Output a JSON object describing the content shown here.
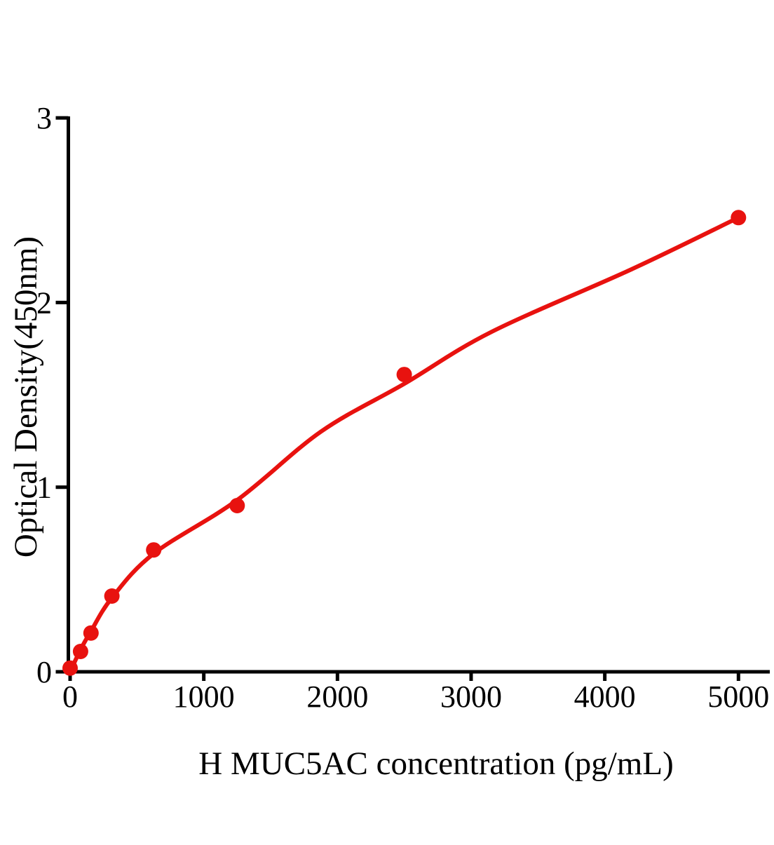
{
  "chart_data": {
    "type": "scatter",
    "title": "",
    "xlabel": "H MUC5AC concentration (pg/mL)",
    "ylabel": "Optical Density(450nm)",
    "x_ticks": [
      0,
      1000,
      2000,
      3000,
      4000,
      5000
    ],
    "x_tick_labels": [
      "0",
      "1000",
      "2000",
      "3000",
      "4000",
      "5000"
    ],
    "y_ticks": [
      0,
      1,
      2,
      3
    ],
    "y_tick_labels": [
      "0",
      "1",
      "2",
      "3"
    ],
    "xlim": [
      0,
      5230
    ],
    "ylim": [
      0,
      3
    ],
    "grid": false,
    "legend": "none",
    "series": [
      {
        "name": "standard-curve-points",
        "x": [
          0,
          78.1,
          156.3,
          312.5,
          625,
          1250,
          2500,
          5000
        ],
        "y": [
          0.02,
          0.11,
          0.21,
          0.41,
          0.66,
          0.9,
          1.61,
          2.46
        ]
      }
    ],
    "fit_curve": {
      "name": "fitted-curve",
      "x": [
        0,
        78,
        156,
        312,
        625,
        1250,
        1875,
        2500,
        3150,
        4200,
        5000
      ],
      "y": [
        0.0,
        0.12,
        0.22,
        0.4,
        0.64,
        0.93,
        1.3,
        1.56,
        1.84,
        2.18,
        2.46
      ]
    },
    "marker_color": "#e8120f",
    "line_color": "#e8120f",
    "axis_color": "#000000",
    "background_color": "#ffffff"
  }
}
